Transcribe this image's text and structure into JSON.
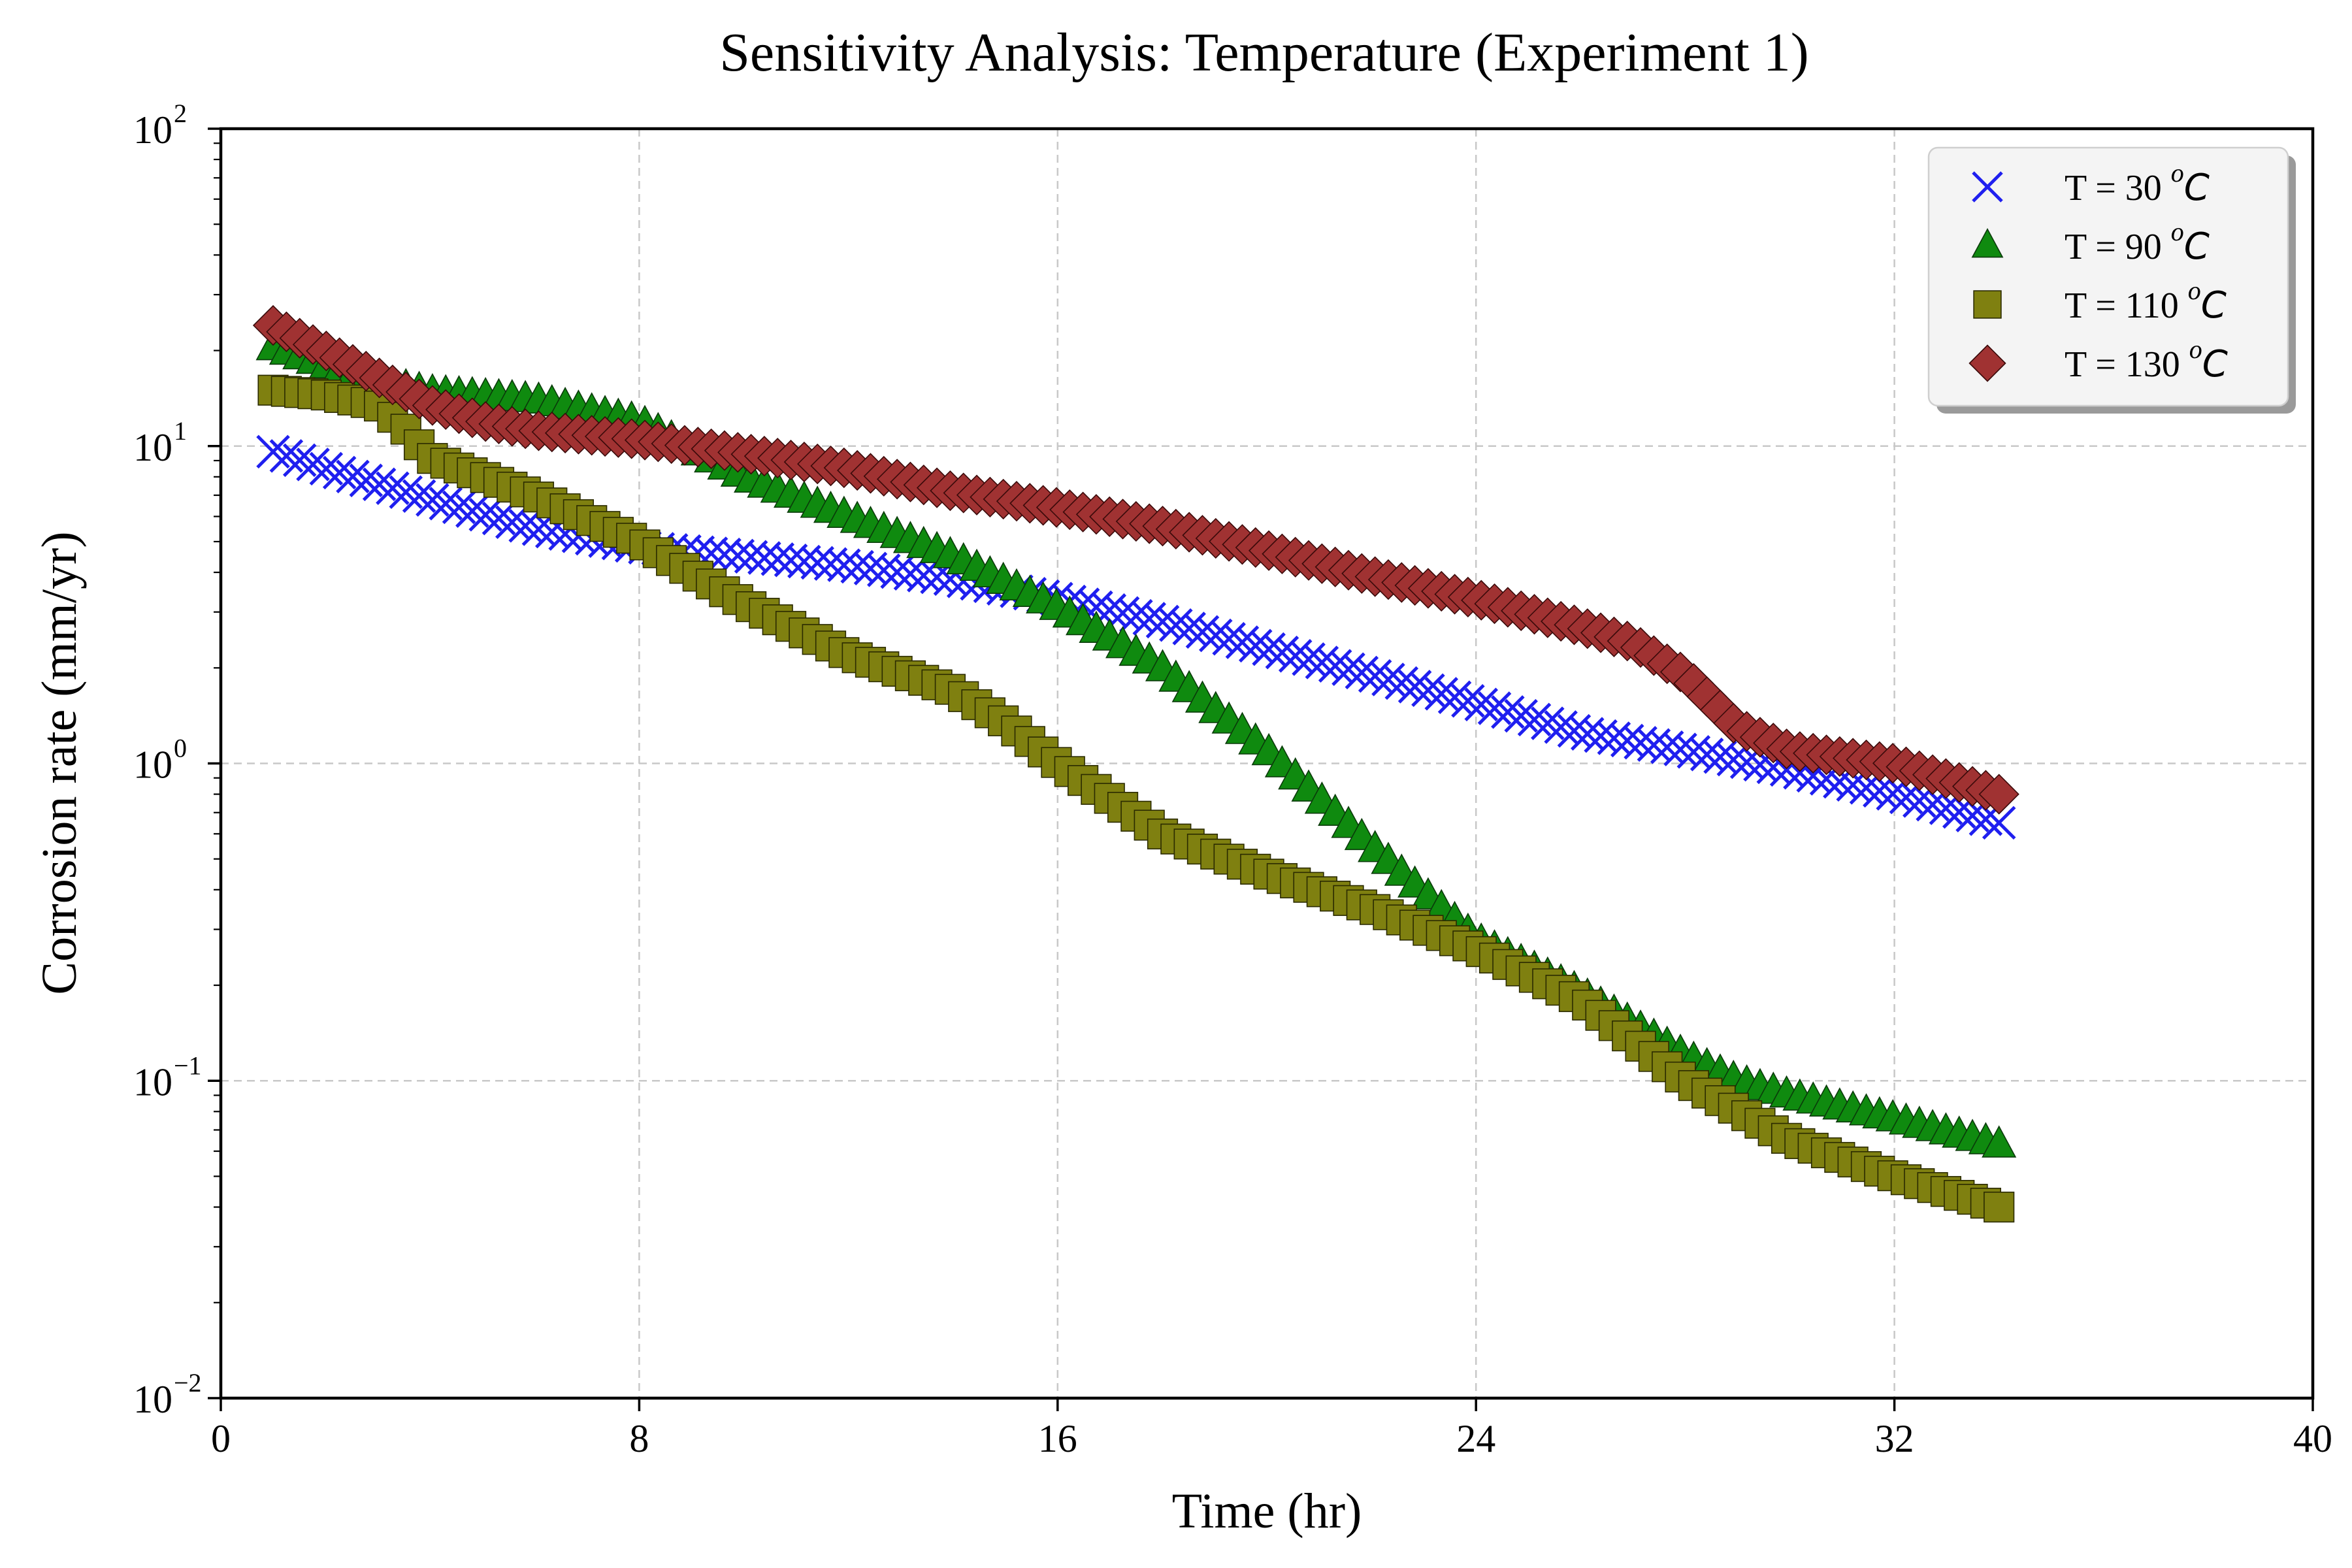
{
  "chart_data": {
    "type": "scatter",
    "title": "Sensitivity Analysis: Temperature (Experiment 1)",
    "xlabel": "Time (hr)",
    "ylabel": "Corrosion rate (mm/yr)",
    "xlim": [
      0,
      40
    ],
    "ylim": [
      0.01,
      100
    ],
    "yscale": "log",
    "xticks": [
      0,
      8,
      16,
      24,
      32,
      40
    ],
    "xtick_labels": [
      "0",
      "8",
      "16",
      "24",
      "32",
      "40"
    ],
    "yticks": [
      0.01,
      0.1,
      1,
      10,
      100
    ],
    "ytick_labels": [
      {
        "base": "10",
        "exp": "−2"
      },
      {
        "base": "10",
        "exp": "−1"
      },
      {
        "base": "10",
        "exp": "0"
      },
      {
        "base": "10",
        "exp": "1"
      },
      {
        "base": "10",
        "exp": "2"
      }
    ],
    "grid": true,
    "legend_position": "top-right",
    "series": [
      {
        "name": "T = 30 °C",
        "label_prefix": "T = 30 ",
        "label_unit": "C",
        "label_sup": "o",
        "marker": "x",
        "color": "#1f1fef",
        "x": [
          1,
          2,
          4,
          6,
          8,
          10,
          12,
          14,
          16,
          18,
          20,
          22,
          24,
          26,
          28,
          30,
          32,
          34
        ],
        "y": [
          9.6,
          8.5,
          6.8,
          5.5,
          4.8,
          4.5,
          4.2,
          3.8,
          3.3,
          2.8,
          2.3,
          1.9,
          1.55,
          1.25,
          1.1,
          0.95,
          0.8,
          0.65
        ]
      },
      {
        "name": "T = 90 °C",
        "label_prefix": "T = 90 ",
        "label_unit": "C",
        "label_sup": "o",
        "marker": "triangle",
        "color": "#0f8a0f",
        "x": [
          1,
          2,
          3,
          4,
          6,
          8,
          10,
          12,
          14,
          16,
          18,
          20,
          22,
          24,
          26,
          28,
          29,
          30,
          32,
          34
        ],
        "y": [
          20.5,
          18.0,
          16.0,
          14.8,
          14.0,
          12.0,
          8.0,
          6.0,
          4.5,
          3.1,
          2.0,
          1.1,
          0.55,
          0.28,
          0.19,
          0.12,
          0.1,
          0.09,
          0.076,
          0.063
        ]
      },
      {
        "name": "T = 110 °C",
        "label_prefix": "T = 110 ",
        "label_unit": "C",
        "label_sup": "o",
        "marker": "square",
        "color": "#7f8010",
        "x": [
          1,
          2,
          3,
          3.5,
          4,
          6,
          8,
          10,
          12,
          14,
          15,
          16,
          18,
          20,
          22,
          24,
          26,
          28,
          30,
          32,
          34
        ],
        "y": [
          15.0,
          14.5,
          13.5,
          11.5,
          9.2,
          7.0,
          5.0,
          3.2,
          2.2,
          1.7,
          1.35,
          1.0,
          0.6,
          0.45,
          0.35,
          0.26,
          0.18,
          0.1,
          0.065,
          0.05,
          0.04
        ]
      },
      {
        "name": "T = 130 °C",
        "label_prefix": "T = 130 ",
        "label_unit": "C",
        "label_sup": "o",
        "marker": "diamond",
        "color": "#a03232",
        "x": [
          1,
          2,
          3,
          4,
          5,
          6,
          8,
          10,
          12,
          14,
          16,
          18,
          20,
          22,
          24,
          26,
          27,
          28,
          29,
          30,
          32,
          34
        ],
        "y": [
          24.0,
          20.0,
          16.5,
          13.5,
          12.0,
          11.2,
          10.5,
          9.5,
          8.5,
          7.2,
          6.4,
          5.6,
          4.7,
          3.9,
          3.3,
          2.7,
          2.4,
          1.9,
          1.3,
          1.1,
          1.0,
          0.8
        ]
      }
    ]
  }
}
